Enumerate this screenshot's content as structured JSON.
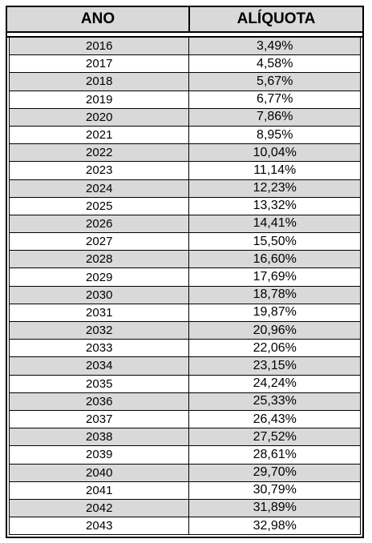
{
  "table": {
    "headers": {
      "year": "ANO",
      "rate": "ALÍQUOTA"
    },
    "rows": [
      {
        "year": "2016",
        "rate": "3,49%"
      },
      {
        "year": "2017",
        "rate": "4,58%"
      },
      {
        "year": "2018",
        "rate": "5,67%"
      },
      {
        "year": "2019",
        "rate": "6,77%"
      },
      {
        "year": "2020",
        "rate": "7,86%"
      },
      {
        "year": "2021",
        "rate": "8,95%"
      },
      {
        "year": "2022",
        "rate": "10,04%"
      },
      {
        "year": "2023",
        "rate": "11,14%"
      },
      {
        "year": "2024",
        "rate": "12,23%"
      },
      {
        "year": "2025",
        "rate": "13,32%"
      },
      {
        "year": "2026",
        "rate": "14,41%"
      },
      {
        "year": "2027",
        "rate": "15,50%"
      },
      {
        "year": "2028",
        "rate": "16,60%"
      },
      {
        "year": "2029",
        "rate": "17,69%"
      },
      {
        "year": "2030",
        "rate": "18,78%"
      },
      {
        "year": "2031",
        "rate": "19,87%"
      },
      {
        "year": "2032",
        "rate": "20,96%"
      },
      {
        "year": "2033",
        "rate": "22,06%"
      },
      {
        "year": "2034",
        "rate": "23,15%"
      },
      {
        "year": "2035",
        "rate": "24,24%"
      },
      {
        "year": "2036",
        "rate": "25,33%"
      },
      {
        "year": "2037",
        "rate": "26,43%"
      },
      {
        "year": "2038",
        "rate": "27,52%"
      },
      {
        "year": "2039",
        "rate": "28,61%"
      },
      {
        "year": "2040",
        "rate": "29,70%"
      },
      {
        "year": "2041",
        "rate": "30,79%"
      },
      {
        "year": "2042",
        "rate": "31,89%"
      },
      {
        "year": "2043",
        "rate": "32,98%"
      }
    ]
  },
  "colors": {
    "shaded_row": "#d9d9d9",
    "border": "#000000",
    "background": "#ffffff"
  }
}
